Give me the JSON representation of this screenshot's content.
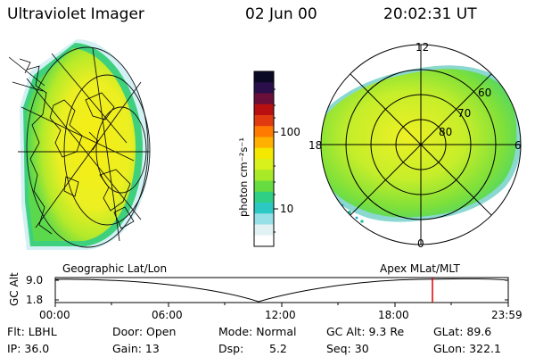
{
  "header": {
    "title": "Ultraviolet Imager",
    "date": "02 Jun 00",
    "time": "20:02:31 UT"
  },
  "colorbar": {
    "unit_label": "photon cm⁻²s⁻¹",
    "ticks": [
      "100",
      "10"
    ],
    "colors": [
      "#0a0a24",
      "#2a0f4a",
      "#6a0f3a",
      "#b81010",
      "#e03a10",
      "#ff7a00",
      "#ffb000",
      "#f4e800",
      "#d8f01c",
      "#a8ea28",
      "#66dc40",
      "#2fcf86",
      "#2cc8c4",
      "#98e0e8",
      "#e2f2f4",
      "#ffffff"
    ]
  },
  "polar_plot": {
    "mlt_labels": {
      "top": "12",
      "left": "18",
      "right": "6",
      "bottom": "0"
    },
    "lat_labels": [
      "60",
      "70",
      "80"
    ]
  },
  "panel_labels": {
    "left": "Geographic Lat/Lon",
    "right": "Apex MLat/MLT"
  },
  "altitude_plot": {
    "axis_label": "GC Alt",
    "y_ticks": [
      "9.0",
      "1.8"
    ],
    "x_ticks": [
      "00:00",
      "06:00",
      "12:00",
      "18:00",
      "23:59"
    ],
    "marker_color": "#dd0000"
  },
  "info": {
    "flt": "Flt: LBHL",
    "door": "Door: Open",
    "mode": "Mode: Normal",
    "gc_alt": "GC Alt: 9.3 Re",
    "glat": "GLat: 89.6",
    "ip": "IP: 36.0",
    "gain": "Gain: 13",
    "dsp_label": "Dsp:",
    "dsp_value": "5.2",
    "seq": "Seq: 30",
    "glon": "GLon: 322.1"
  }
}
